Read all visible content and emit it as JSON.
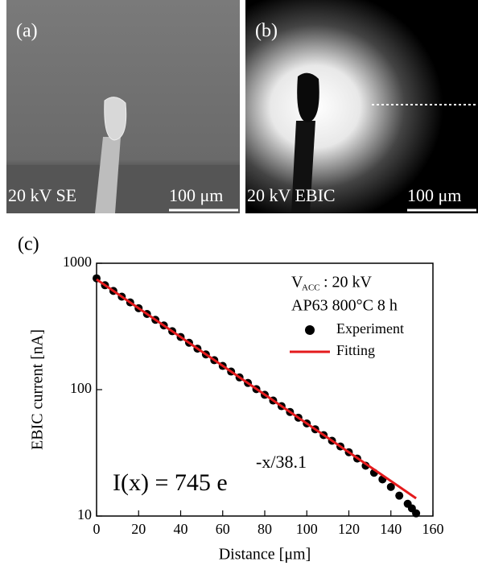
{
  "panels": [
    {
      "label": "(a)",
      "caption": "20 kV SE",
      "scale": "100 μm"
    },
    {
      "label": "(b)",
      "caption": "20 kV EBIC",
      "scale": "100 μm"
    }
  ],
  "chart_data": {
    "type": "scatter",
    "panel_label": "(c)",
    "x_label": "Distance [μm]",
    "y_label": "EBIC current [nA]",
    "xlim": [
      0,
      160
    ],
    "xticks": [
      0,
      20,
      40,
      60,
      80,
      100,
      120,
      140,
      160
    ],
    "ylim": [
      10,
      1000
    ],
    "yticks": [
      10,
      100,
      1000
    ],
    "log_y": true,
    "conditions": {
      "symbol": "V",
      "subscript": "ACC",
      "voltage": ": 20 kV",
      "sample": "AP63 800°C 8 h"
    },
    "equation": {
      "main": "I(x) = 745 e",
      "exponent": "-x/38.1"
    },
    "series": [
      {
        "name": "Experiment",
        "color": "#000000",
        "kind": "points",
        "x": [
          0,
          4,
          8,
          12,
          16,
          20,
          24,
          28,
          32,
          36,
          40,
          44,
          48,
          52,
          56,
          60,
          64,
          68,
          72,
          76,
          80,
          84,
          88,
          92,
          96,
          100,
          104,
          108,
          112,
          116,
          120,
          124,
          128,
          132,
          136,
          140,
          144,
          148,
          150,
          152
        ],
        "values": [
          760,
          670,
          604,
          544,
          490,
          441,
          397,
          357,
          322,
          290,
          261,
          235,
          211,
          190,
          171,
          154,
          139,
          125,
          113,
          101,
          91,
          82,
          74,
          66.6,
          60,
          54,
          48.6,
          43.7,
          39.4,
          35.5,
          32,
          28.5,
          25,
          22,
          19.5,
          17,
          14.5,
          12.5,
          11.5,
          10.5
        ]
      },
      {
        "name": "Fitting",
        "color": "#e41a1c",
        "kind": "line",
        "x": [
          0,
          152
        ],
        "values": [
          745,
          13.8
        ]
      }
    ]
  }
}
